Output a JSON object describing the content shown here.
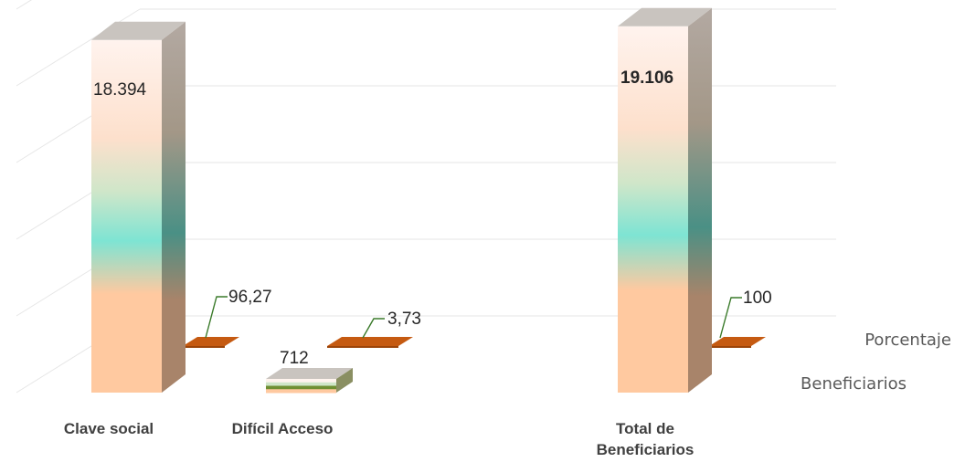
{
  "chart_data": {
    "type": "bar",
    "three_d": true,
    "categories": [
      "Clave social",
      "Difícil Acceso",
      "Total de Beneficiarios"
    ],
    "category_lines": [
      [
        "Clave social"
      ],
      [
        "Difícil Acceso"
      ],
      [
        "Total de",
        "Beneficiarios"
      ]
    ],
    "series": [
      {
        "name": "Beneficiarios",
        "values": [
          18394,
          712,
          19106
        ],
        "labels": [
          "18.394",
          "712",
          "19.106"
        ]
      },
      {
        "name": "Porcentaje",
        "values": [
          96.27,
          3.73,
          100
        ],
        "labels": [
          "96,27",
          "3,73",
          "100"
        ]
      }
    ],
    "bold_value_labels": [
      "19.106"
    ],
    "ylim": [
      0,
      20000
    ],
    "grid": true,
    "colors": {
      "bar_top": "#c9c4bf",
      "bar_light": "#fff3ee",
      "bar_mid": "#7ee4d3",
      "bar_base": "#ffc9a0",
      "bar_side": "#6a6560",
      "pct_plate": "#c55a11",
      "leader": "#3a7a2a",
      "gridline": "#e6e6e6"
    }
  }
}
